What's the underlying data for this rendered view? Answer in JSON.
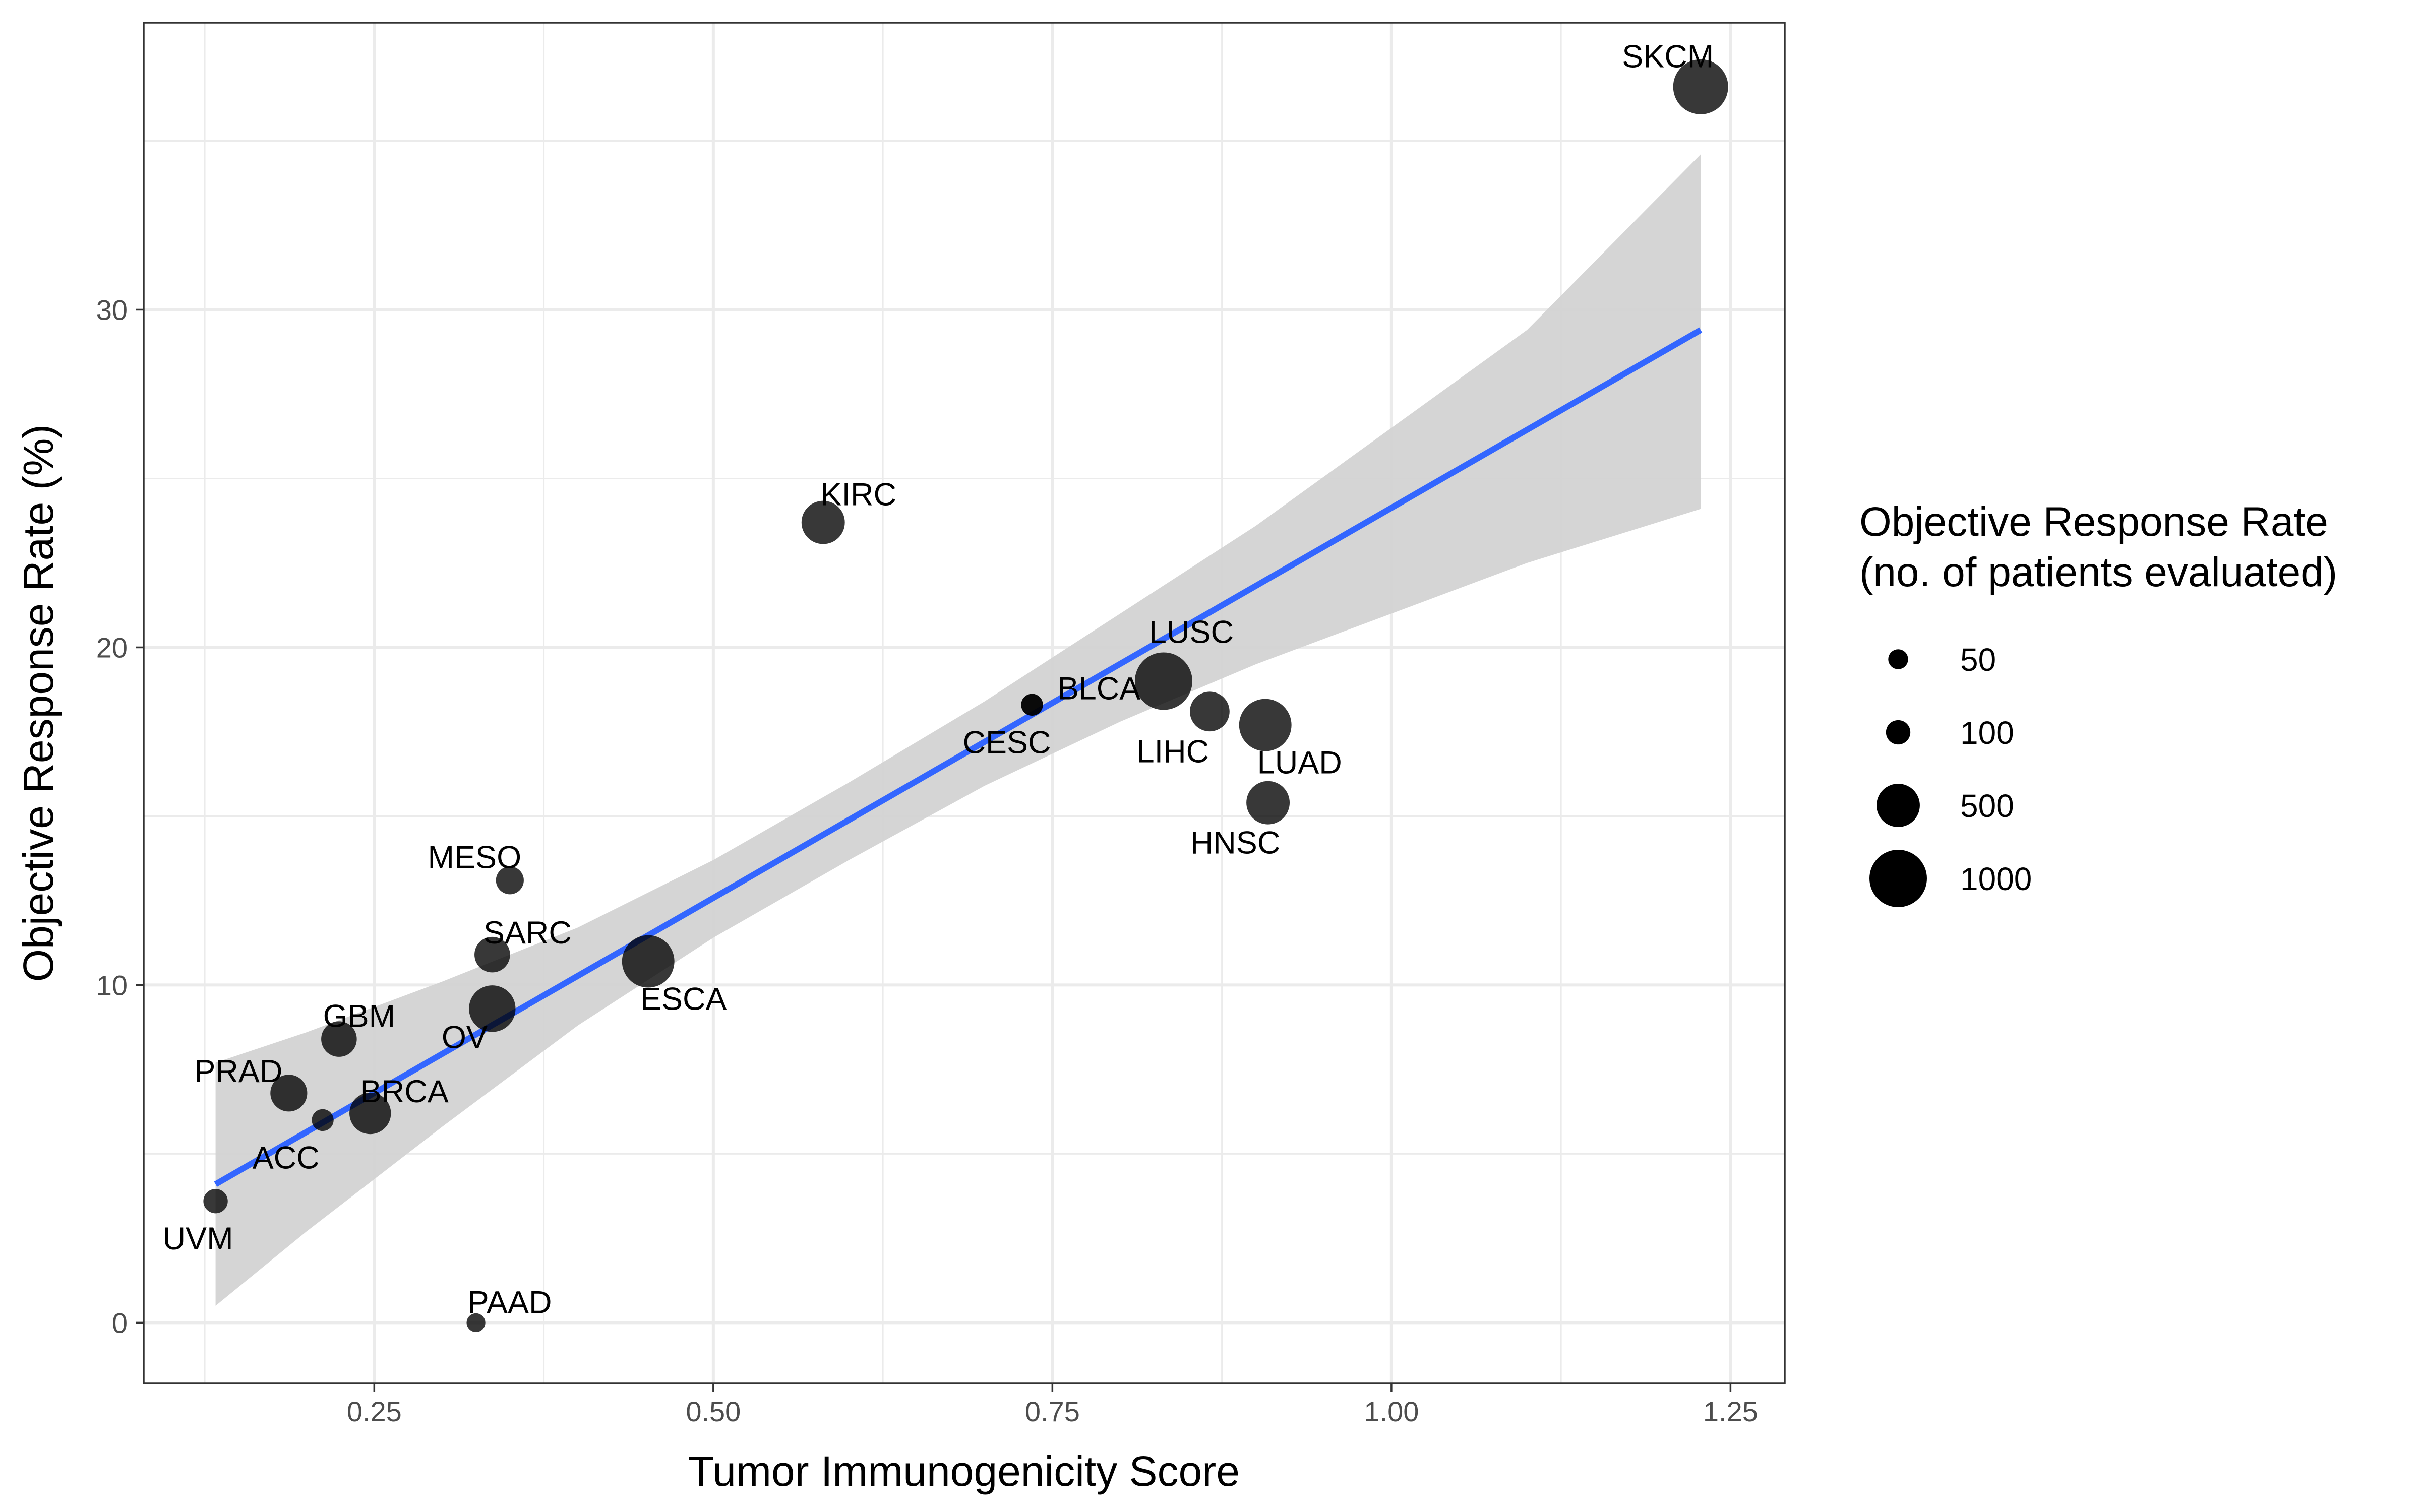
{
  "chart_data": {
    "type": "scatter",
    "title": "",
    "xlabel": "Tumor Immunogenicity Score",
    "ylabel": "Objective Response Rate (%)",
    "xlim": [
      0.08,
      1.29
    ],
    "ylim": [
      -1.8,
      38.5
    ],
    "x_ticks": [
      0.25,
      0.5,
      0.75,
      1.0,
      1.25
    ],
    "x_tick_labels": [
      "0.25",
      "0.50",
      "0.75",
      "1.00",
      "1.25"
    ],
    "y_ticks": [
      0,
      10,
      20,
      30
    ],
    "y_tick_labels": [
      "0",
      "10",
      "20",
      "30"
    ],
    "grid": true,
    "legend": {
      "title_line1": "Objective Response Rate",
      "title_line2": "(no. of patients evaluated)",
      "position": "right",
      "entries": [
        {
          "label": "50",
          "value": 50
        },
        {
          "label": "100",
          "value": 100
        },
        {
          "label": "500",
          "value": 500
        },
        {
          "label": "1000",
          "value": 1000
        }
      ]
    },
    "points": [
      {
        "label": "SKCM",
        "x": 1.228,
        "y": 36.6,
        "n": 900
      },
      {
        "label": "KIRC",
        "x": 0.581,
        "y": 23.7,
        "n": 500
      },
      {
        "label": "LUSC",
        "x": 0.832,
        "y": 19.0,
        "n": 1000
      },
      {
        "label": "BLCA",
        "x": 0.735,
        "y": 18.3,
        "n": 70
      },
      {
        "label": "CESC",
        "x": 0.735,
        "y": 18.3,
        "n": 70
      },
      {
        "label": "LIHC",
        "x": 0.866,
        "y": 18.1,
        "n": 400
      },
      {
        "label": "LUAD",
        "x": 0.907,
        "y": 17.7,
        "n": 800
      },
      {
        "label": "HNSC",
        "x": 0.909,
        "y": 15.4,
        "n": 500
      },
      {
        "label": "MESO",
        "x": 0.35,
        "y": 13.1,
        "n": 150
      },
      {
        "label": "SARC",
        "x": 0.337,
        "y": 10.9,
        "n": 300
      },
      {
        "label": "ESCA",
        "x": 0.452,
        "y": 10.7,
        "n": 800
      },
      {
        "label": "OV",
        "x": 0.337,
        "y": 9.3,
        "n": 600
      },
      {
        "label": "GBM",
        "x": 0.224,
        "y": 8.4,
        "n": 300
      },
      {
        "label": "PRAD",
        "x": 0.187,
        "y": 6.8,
        "n": 330
      },
      {
        "label": "BRCA",
        "x": 0.247,
        "y": 6.2,
        "n": 450
      },
      {
        "label": "ACC",
        "x": 0.212,
        "y": 6.0,
        "n": 70
      },
      {
        "label": "UVM",
        "x": 0.133,
        "y": 3.6,
        "n": 100
      },
      {
        "label": "PAAD",
        "x": 0.325,
        "y": 0.0,
        "n": 40
      }
    ],
    "trend_line": {
      "x": [
        0.133,
        1.228
      ],
      "y": [
        4.1,
        29.4
      ],
      "color": "#3366FF"
    },
    "confidence_band": {
      "x": [
        0.133,
        0.2,
        0.3,
        0.4,
        0.5,
        0.6,
        0.7,
        0.8,
        0.9,
        1.0,
        1.1,
        1.228
      ],
      "lower": [
        0.5,
        2.7,
        5.8,
        8.8,
        11.4,
        13.7,
        15.9,
        17.8,
        19.5,
        21.0,
        22.5,
        24.1
      ],
      "upper": [
        7.7,
        8.6,
        10.1,
        11.7,
        13.7,
        16.0,
        18.4,
        21.0,
        23.6,
        26.5,
        29.4,
        34.6
      ],
      "color": "#d3d3d3"
    },
    "colors": {
      "point": "#000000",
      "trend": "#3366FF",
      "band": "#d3d3d3",
      "grid": "#ebebeb",
      "panel_border": "#333333"
    }
  }
}
